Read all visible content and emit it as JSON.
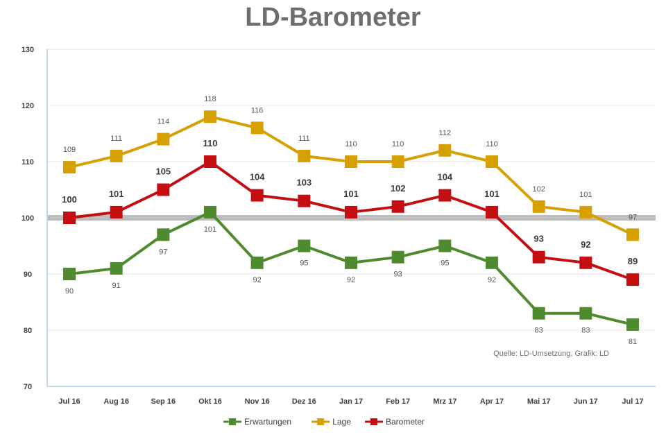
{
  "chart_data": {
    "type": "line",
    "title": "LD-Barometer",
    "xlabel": "",
    "ylabel": "",
    "categories": [
      "Jul 16",
      "Aug 16",
      "Sep 16",
      "Okt 16",
      "Nov 16",
      "Dez 16",
      "Jan 17",
      "Feb 17",
      "Mrz 17",
      "Apr 17",
      "Mai 17",
      "Jun 17",
      "Jul 17"
    ],
    "y_ticks": [
      70,
      80,
      90,
      100,
      110,
      120,
      130
    ],
    "ylim": [
      70,
      130
    ],
    "reference_line": 100,
    "grid": true,
    "legend_position": "bottom",
    "series": [
      {
        "name": "Erwartungen",
        "color": "#4e8a2f",
        "label_position": "below",
        "values": [
          90,
          91,
          97,
          101,
          92,
          95,
          92,
          93,
          95,
          92,
          83,
          83,
          81
        ]
      },
      {
        "name": "Lage",
        "color": "#d6a100",
        "label_position": "above",
        "values": [
          109,
          111,
          114,
          118,
          116,
          111,
          110,
          110,
          112,
          110,
          102,
          101,
          97
        ]
      },
      {
        "name": "Barometer",
        "color": "#c40e12",
        "label_position": "above",
        "bold_labels": true,
        "values": [
          100,
          101,
          105,
          110,
          104,
          103,
          101,
          102,
          104,
          101,
          93,
          92,
          89
        ]
      }
    ],
    "annotation": "Quelle: LD-Umsetzung, Grafik: LD"
  }
}
